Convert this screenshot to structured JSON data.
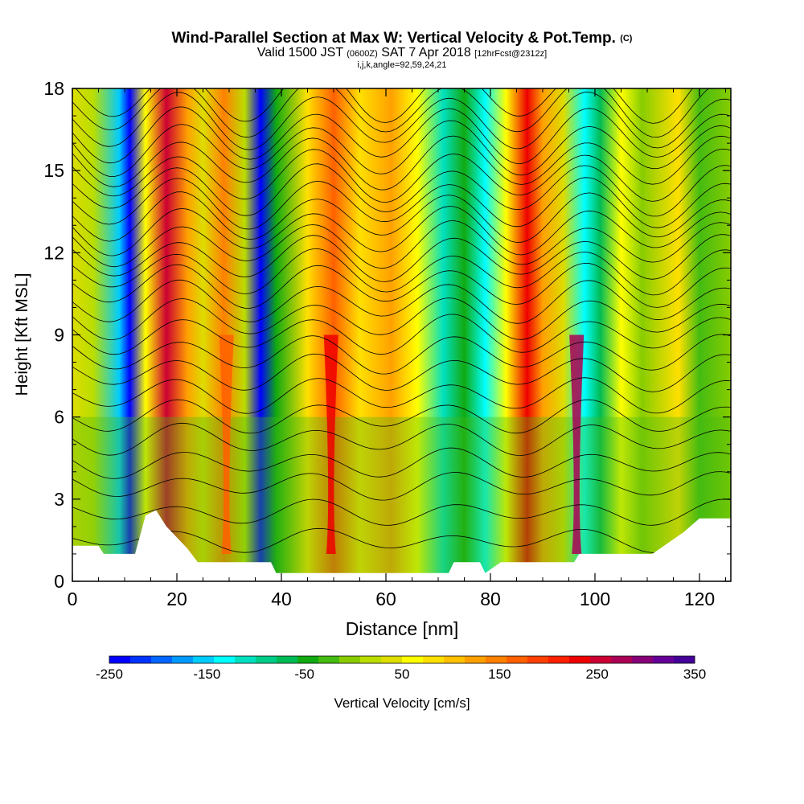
{
  "title": {
    "main": "Wind-Parallel Section at Max W: Vertical Velocity & Pot.Temp.",
    "copyright": "(C)",
    "valid_prefix": "Valid 1500 JST",
    "valid_zulu": "(0600Z)",
    "valid_date": "SAT 7 Apr 2018",
    "forecast": "[12hrFcst@2312z]",
    "indices": "i,j,k,angle=92,59,24,21"
  },
  "chart_data": {
    "type": "heatmap",
    "xlabel": "Distance [nm]",
    "ylabel": "Height [Kft MSL]",
    "xlim": [
      0,
      126
    ],
    "ylim": [
      0,
      18
    ],
    "x_ticks": [
      0,
      20,
      40,
      60,
      80,
      100,
      120
    ],
    "y_ticks": [
      0,
      3,
      6,
      9,
      12,
      15,
      18
    ],
    "colorbar": {
      "label": "Vertical Velocity [cm/s]",
      "range": [
        -250,
        350
      ],
      "tick_labels": [
        "-250",
        "-150",
        "-50",
        "50",
        "150",
        "250",
        "350"
      ],
      "colors": [
        "#0000ff",
        "#0033ff",
        "#0066ff",
        "#0099ff",
        "#00ccff",
        "#00ffff",
        "#00e0c0",
        "#00cc88",
        "#00bb55",
        "#11aa11",
        "#44bb11",
        "#88cc00",
        "#bbdd00",
        "#dddd00",
        "#ffff00",
        "#ffe000",
        "#ffc000",
        "#ffa000",
        "#ff8000",
        "#ff6000",
        "#ff4000",
        "#ff2000",
        "#ee0000",
        "#cc0033",
        "#aa0055",
        "#880077",
        "#660099",
        "#440099"
      ]
    },
    "velocity_bands": [
      {
        "x": 0,
        "value": 30
      },
      {
        "x": 4,
        "value": 10
      },
      {
        "x": 9,
        "value": -150
      },
      {
        "x": 11,
        "value": -240
      },
      {
        "x": 14,
        "value": 60
      },
      {
        "x": 18,
        "value": 260
      },
      {
        "x": 22,
        "value": 120
      },
      {
        "x": 25,
        "value": 30
      },
      {
        "x": 29,
        "value": 150
      },
      {
        "x": 33,
        "value": 10
      },
      {
        "x": 36,
        "value": -240
      },
      {
        "x": 39,
        "value": -40
      },
      {
        "x": 45,
        "value": 80
      },
      {
        "x": 50,
        "value": 160
      },
      {
        "x": 55,
        "value": 80
      },
      {
        "x": 61,
        "value": 120
      },
      {
        "x": 66,
        "value": 60
      },
      {
        "x": 71,
        "value": -120
      },
      {
        "x": 75,
        "value": -40
      },
      {
        "x": 79,
        "value": -130
      },
      {
        "x": 83,
        "value": 60
      },
      {
        "x": 87,
        "value": 240
      },
      {
        "x": 90,
        "value": 120
      },
      {
        "x": 94,
        "value": 30
      },
      {
        "x": 98,
        "value": -140
      },
      {
        "x": 101,
        "value": -60
      },
      {
        "x": 105,
        "value": 60
      },
      {
        "x": 109,
        "value": 0
      },
      {
        "x": 116,
        "value": 90
      },
      {
        "x": 120,
        "value": -30
      },
      {
        "x": 126,
        "value": 0
      }
    ],
    "updrafts_low": [
      {
        "x": 29.5,
        "value": 170
      },
      {
        "x": 49.5,
        "value": 230
      },
      {
        "x": 96.5,
        "value": 280
      }
    ],
    "terrain_kft": [
      {
        "x": 0,
        "h": 1.3
      },
      {
        "x": 5,
        "h": 1.3
      },
      {
        "x": 6,
        "h": 1.0
      },
      {
        "x": 12,
        "h": 1.0
      },
      {
        "x": 14,
        "h": 2.4
      },
      {
        "x": 16,
        "h": 2.6
      },
      {
        "x": 18,
        "h": 2.0
      },
      {
        "x": 20,
        "h": 1.6
      },
      {
        "x": 22,
        "h": 1.2
      },
      {
        "x": 24,
        "h": 0.7
      },
      {
        "x": 38,
        "h": 0.7
      },
      {
        "x": 39,
        "h": 0.3
      },
      {
        "x": 72,
        "h": 0.3
      },
      {
        "x": 73,
        "h": 0.7
      },
      {
        "x": 78,
        "h": 0.7
      },
      {
        "x": 79,
        "h": 0.3
      },
      {
        "x": 82,
        "h": 0.7
      },
      {
        "x": 96,
        "h": 0.7
      },
      {
        "x": 97,
        "h": 1.0
      },
      {
        "x": 111,
        "h": 1.0
      },
      {
        "x": 117,
        "h": 1.8
      },
      {
        "x": 120,
        "h": 2.3
      },
      {
        "x": 126,
        "h": 2.3
      }
    ],
    "theta_contours_kft": [
      1.5,
      2.5,
      3.5,
      4.3,
      5.2,
      6.0,
      6.8,
      7.6,
      8.3,
      9.0,
      9.6,
      10.2,
      10.8,
      11.3,
      11.8,
      12.3,
      12.8,
      13.3,
      13.8,
      14.3,
      14.8,
      15.3,
      15.8,
      16.3,
      16.8,
      17.3,
      17.8
    ]
  }
}
